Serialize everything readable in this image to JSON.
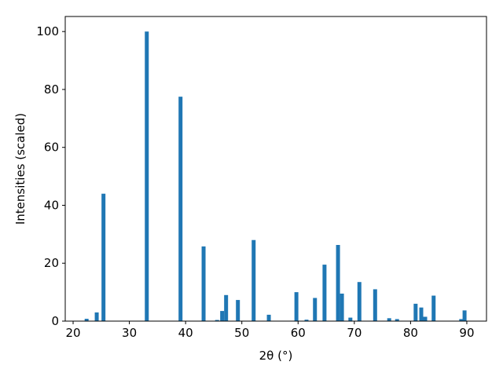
{
  "chart_data": {
    "type": "bar",
    "xlabel": "2θ (°)",
    "ylabel": "Intensities (scaled)",
    "x": [
      22.4,
      24.2,
      25.4,
      33.1,
      39.1,
      43.2,
      45.6,
      46.5,
      47.2,
      49.3,
      52.1,
      54.8,
      59.7,
      61.5,
      63.0,
      64.7,
      67.1,
      67.8,
      69.3,
      70.9,
      73.7,
      76.2,
      77.6,
      80.9,
      81.9,
      82.6,
      84.1,
      89.0,
      89.6
    ],
    "values": [
      0.8,
      3,
      44,
      100,
      77.5,
      25.8,
      0.4,
      3.5,
      9,
      7.3,
      28,
      2.2,
      10,
      0.5,
      8,
      19.5,
      26.3,
      9.5,
      1.2,
      13.5,
      11,
      1,
      0.7,
      6,
      4.7,
      1.5,
      8.8,
      0.7,
      3.7
    ],
    "color": "#1f77b4",
    "xlim": [
      18.6,
      93.5
    ],
    "xticks": [
      20,
      30,
      40,
      50,
      60,
      70,
      80,
      90
    ],
    "ylim": [
      0,
      105.2
    ],
    "yticks": [
      0,
      20,
      40,
      60,
      80,
      100
    ],
    "grid": false
  }
}
